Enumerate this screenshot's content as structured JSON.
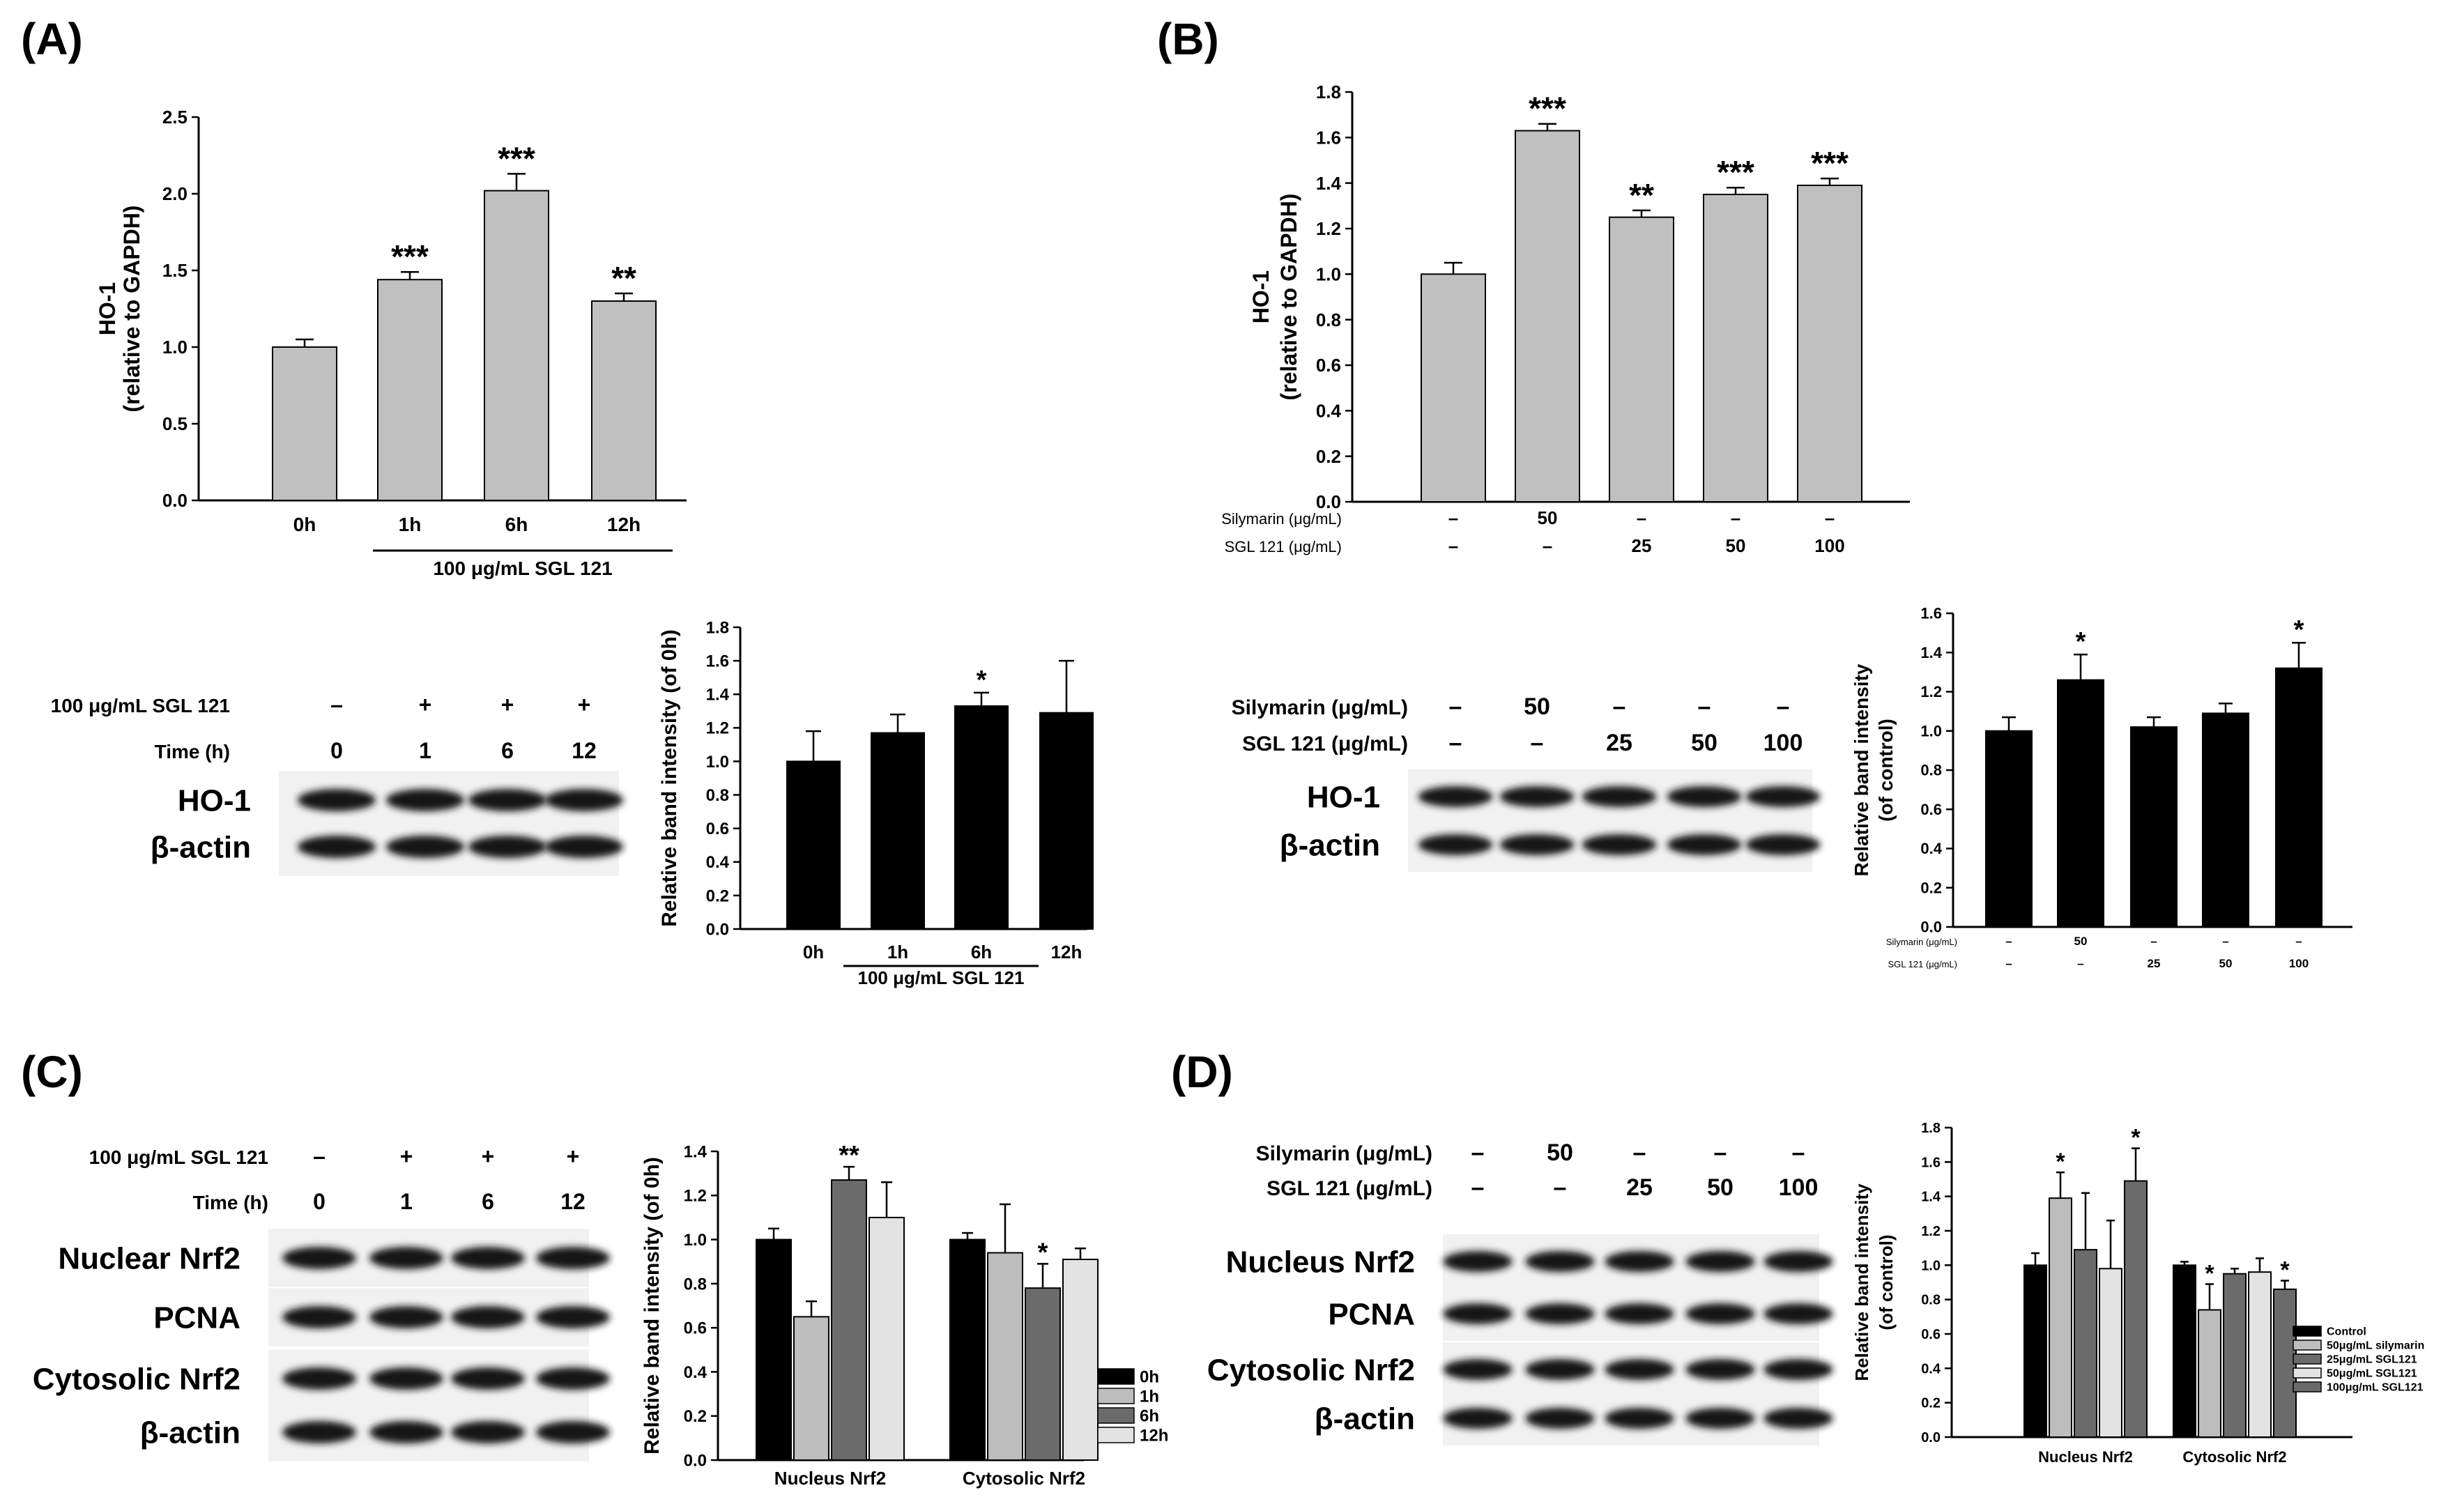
{
  "panel_labels": {
    "A": "(A)",
    "B": "(B)",
    "C": "(C)",
    "D": "(D)"
  },
  "colors": {
    "gray_bar": "#c0c0c0",
    "black_bar": "#000000",
    "c1": "#000000",
    "c2": "#bdbdbd",
    "c3": "#6b6b6b",
    "c4": "#e3e3e3"
  },
  "chart_data": [
    {
      "id": "A_top",
      "type": "bar",
      "title": "",
      "ylabel": "HO-1",
      "ylabel2": "(relative to GAPDH)",
      "ylim": [
        0,
        2.5
      ],
      "yticks": [
        "0.0",
        "0.5",
        "1.0",
        "1.5",
        "2.0",
        "2.5"
      ],
      "categories": [
        "0h",
        "1h",
        "6h",
        "12h"
      ],
      "values": [
        1.0,
        1.44,
        2.02,
        1.3
      ],
      "errors": [
        0.05,
        0.05,
        0.11,
        0.05
      ],
      "significance": [
        "",
        "***",
        "***",
        "**"
      ],
      "group_label": "100 μg/mL SGL 121"
    },
    {
      "id": "B_top",
      "type": "bar",
      "title": "",
      "ylabel": "HO-1",
      "ylabel2": "(relative to GAPDH)",
      "ylim": [
        0,
        1.8
      ],
      "yticks": [
        "0.0",
        "0.2",
        "0.4",
        "0.6",
        "0.8",
        "1.0",
        "1.2",
        "1.4",
        "1.6",
        "1.8"
      ],
      "values": [
        1.0,
        1.63,
        1.25,
        1.35,
        1.39
      ],
      "errors": [
        0.05,
        0.03,
        0.03,
        0.03,
        0.03
      ],
      "significance": [
        "",
        "***",
        "**",
        "***",
        "***"
      ],
      "row_labels": [
        "Silymarin (μg/mL)",
        "SGL 121 (μg/mL)"
      ],
      "row1": [
        "–",
        "50",
        "–",
        "–",
        "–"
      ],
      "row2": [
        "–",
        "–",
        "25",
        "50",
        "100"
      ]
    },
    {
      "id": "A_mid",
      "type": "bar",
      "title": "",
      "ylabel": "Relative band intensity (of 0h)",
      "ylim": [
        0,
        1.8
      ],
      "yticks": [
        "0.0",
        "0.2",
        "0.4",
        "0.6",
        "0.8",
        "1.0",
        "1.2",
        "1.4",
        "1.6",
        "1.8"
      ],
      "categories": [
        "0h",
        "1h",
        "6h",
        "12h"
      ],
      "values": [
        1.0,
        1.17,
        1.33,
        1.29
      ],
      "errors": [
        0.18,
        0.11,
        0.08,
        0.31
      ],
      "significance": [
        "",
        "",
        "*",
        ""
      ],
      "group_label": "100 μg/mL SGL 121"
    },
    {
      "id": "B_mid",
      "type": "bar",
      "title": "",
      "ylabel": "Relative band intensity",
      "ylabel2": "(of control)",
      "ylim": [
        0,
        1.6
      ],
      "yticks": [
        "0.0",
        "0.2",
        "0.4",
        "0.6",
        "0.8",
        "1.0",
        "1.2",
        "1.4",
        "1.6"
      ],
      "values": [
        1.0,
        1.26,
        1.02,
        1.09,
        1.32
      ],
      "errors": [
        0.07,
        0.13,
        0.05,
        0.05,
        0.13
      ],
      "significance": [
        "",
        "*",
        "",
        "",
        "*"
      ],
      "row_labels": [
        "Silymarin (μg/mL)",
        "SGL 121 (μg/mL)"
      ],
      "row1": [
        "–",
        "50",
        "–",
        "–",
        "–"
      ],
      "row2": [
        "–",
        "–",
        "25",
        "50",
        "100"
      ]
    },
    {
      "id": "C",
      "type": "bar",
      "title": "",
      "ylabel": "Relative band intensity (of 0h)",
      "ylim": [
        0,
        1.4
      ],
      "yticks": [
        "0.0",
        "0.2",
        "0.4",
        "0.6",
        "0.8",
        "1.0",
        "1.2",
        "1.4"
      ],
      "groups": [
        "Nucleus Nrf2",
        "Cytosolic Nrf2"
      ],
      "series": [
        {
          "name": "0h",
          "values": [
            1.0,
            1.0
          ],
          "errors": [
            0.05,
            0.03
          ],
          "sig": [
            "",
            ""
          ]
        },
        {
          "name": "1h",
          "values": [
            0.65,
            0.94
          ],
          "errors": [
            0.07,
            0.22
          ],
          "sig": [
            "",
            ""
          ]
        },
        {
          "name": "6h",
          "values": [
            1.27,
            0.78
          ],
          "errors": [
            0.06,
            0.11
          ],
          "sig": [
            "**",
            "*"
          ]
        },
        {
          "name": "12h",
          "values": [
            1.1,
            0.91
          ],
          "errors": [
            0.16,
            0.05
          ],
          "sig": [
            "",
            ""
          ]
        }
      ],
      "legend": "right"
    },
    {
      "id": "D",
      "type": "bar",
      "title": "",
      "ylabel": "Relative band intensity",
      "ylabel2": "(of control)",
      "ylim": [
        0,
        1.8
      ],
      "yticks": [
        "0.0",
        "0.2",
        "0.4",
        "0.6",
        "0.8",
        "1.0",
        "1.2",
        "1.4",
        "1.6",
        "1.8"
      ],
      "groups": [
        "Nucleus Nrf2",
        "Cytosolic Nrf2"
      ],
      "series": [
        {
          "name": "Control",
          "values": [
            1.0,
            1.0
          ],
          "errors": [
            0.07,
            0.02
          ],
          "sig": [
            "",
            ""
          ]
        },
        {
          "name": "50μg/mL silymarin",
          "values": [
            1.39,
            0.74
          ],
          "errors": [
            0.15,
            0.15
          ],
          "sig": [
            "*",
            "*"
          ]
        },
        {
          "name": "25μg/mL SGL121",
          "values": [
            1.09,
            0.95
          ],
          "errors": [
            0.33,
            0.03
          ],
          "sig": [
            "",
            ""
          ]
        },
        {
          "name": "50μg/mL SGL121",
          "values": [
            0.98,
            0.96
          ],
          "errors": [
            0.28,
            0.08
          ],
          "sig": [
            "",
            ""
          ]
        },
        {
          "name": "100μg/mL SGL121",
          "values": [
            1.49,
            0.86
          ],
          "errors": [
            0.19,
            0.05
          ],
          "sig": [
            "*",
            "*"
          ]
        }
      ],
      "legend": "right"
    }
  ],
  "blots": {
    "A": {
      "row1_label": "100 μg/mL SGL 121",
      "row1": [
        "–",
        "+",
        "+",
        "+"
      ],
      "row2_label": "Time (h)",
      "row2": [
        "0",
        "1",
        "6",
        "12"
      ],
      "bands": [
        "HO-1",
        "β-actin"
      ]
    },
    "B": {
      "row1_label": "Silymarin (μg/mL)",
      "row1": [
        "–",
        "50",
        "–",
        "–",
        "–"
      ],
      "row2_label": "SGL 121 (μg/mL)",
      "row2": [
        "–",
        "–",
        "25",
        "50",
        "100"
      ],
      "bands": [
        "HO-1",
        "β-actin"
      ]
    },
    "C": {
      "row1_label": "100 μg/mL SGL 121",
      "row1": [
        "–",
        "+",
        "+",
        "+"
      ],
      "row2_label": "Time (h)",
      "row2": [
        "0",
        "1",
        "6",
        "12"
      ],
      "bands": [
        "Nuclear Nrf2",
        "PCNA",
        "Cytosolic Nrf2",
        "β-actin"
      ]
    },
    "D": {
      "row1_label": "Silymarin (μg/mL)",
      "row1": [
        "–",
        "50",
        "–",
        "–",
        "–"
      ],
      "row2_label": "SGL 121 (μg/mL)",
      "row2": [
        "–",
        "–",
        "25",
        "50",
        "100"
      ],
      "bands": [
        "Nucleus Nrf2",
        "PCNA",
        "Cytosolic Nrf2",
        "β-actin"
      ]
    }
  }
}
